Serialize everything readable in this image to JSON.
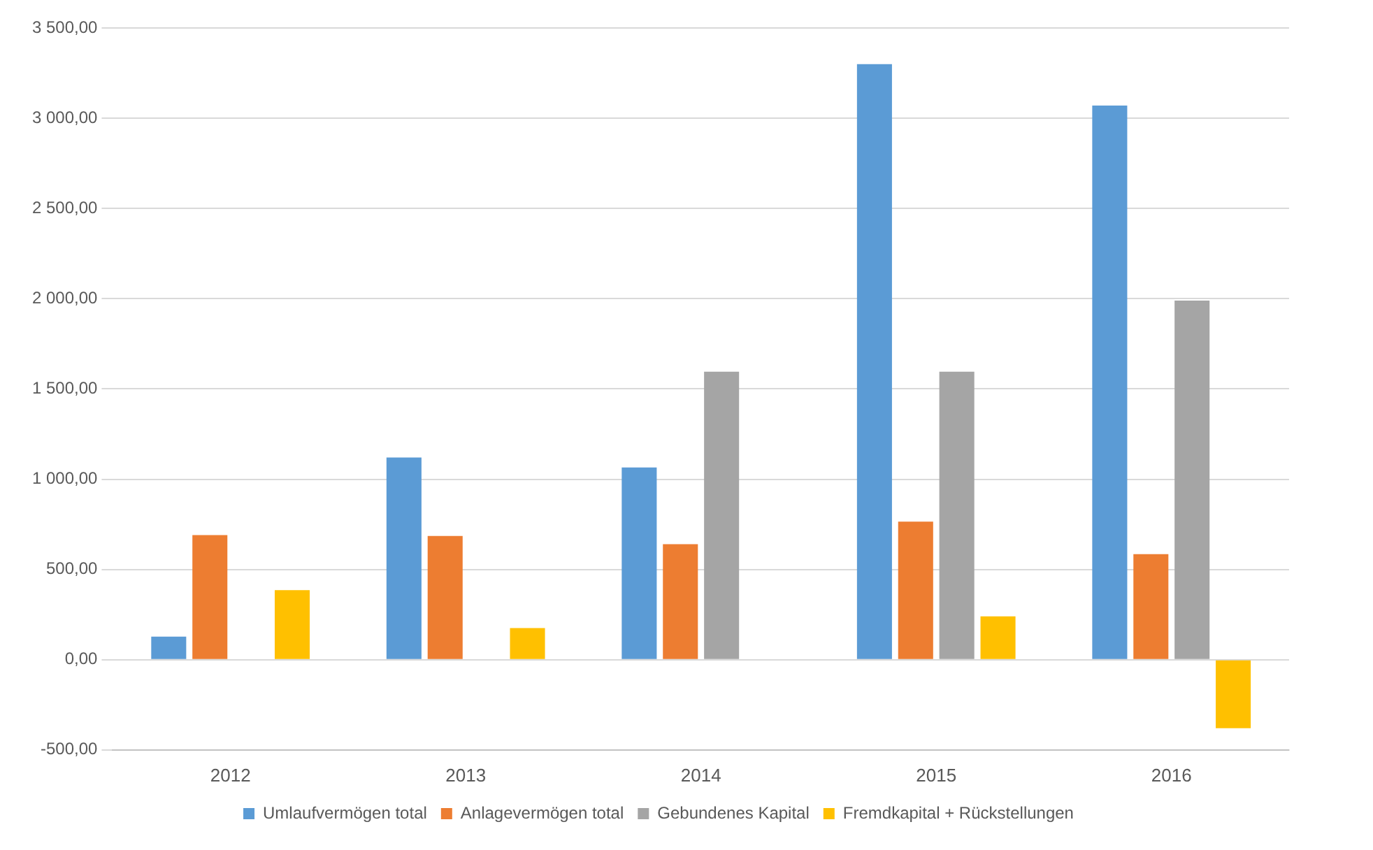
{
  "chart_data": {
    "type": "bar",
    "categories": [
      "2012",
      "2013",
      "2014",
      "2015",
      "2016"
    ],
    "series": [
      {
        "name": "Umlaufvermögen total",
        "color": "#5b9bd5",
        "values": [
          128,
          1120,
          1065,
          3300,
          3070
        ]
      },
      {
        "name": "Anlagevermögen total",
        "color": "#ed7d31",
        "values": [
          690,
          685,
          640,
          765,
          585
        ]
      },
      {
        "name": "Gebundenes Kapital",
        "color": "#a5a5a5",
        "values": [
          0,
          0,
          1595,
          1595,
          1990
        ]
      },
      {
        "name": "Fremdkapital + Rückstellungen",
        "color": "#ffc000",
        "values": [
          385,
          175,
          0,
          240,
          -380
        ]
      }
    ],
    "ylim": [
      -500,
      3500
    ],
    "yticks": [
      {
        "value": -500,
        "label": "-500,00"
      },
      {
        "value": 0,
        "label": "0,00"
      },
      {
        "value": 500,
        "label": "500,00"
      },
      {
        "value": 1000,
        "label": "1 000,00"
      },
      {
        "value": 1500,
        "label": "1 500,00"
      },
      {
        "value": 2000,
        "label": "2 000,00"
      },
      {
        "value": 2500,
        "label": "2 500,00"
      },
      {
        "value": 3000,
        "label": "3 000,00"
      },
      {
        "value": 3500,
        "label": "3 500,00"
      }
    ],
    "grid": "y",
    "legend": "bottom"
  }
}
